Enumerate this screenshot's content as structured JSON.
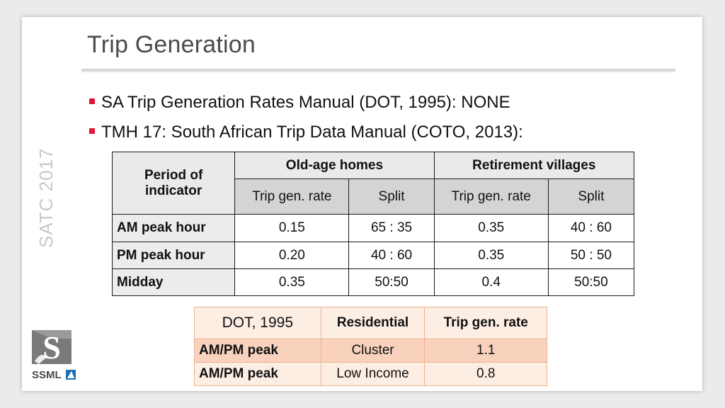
{
  "title": "Trip Generation",
  "bullets": [
    "SA Trip Generation Rates Manual (DOT, 1995): NONE",
    "TMH 17: South African Trip Data Manual (COTO, 2013):"
  ],
  "side_label": "SATC 2017",
  "table1": {
    "period_header": "Period of indicator",
    "group_headers": [
      "Old-age homes",
      "Retirement villages"
    ],
    "sub_headers": [
      "Trip gen. rate",
      "Split",
      "Trip gen. rate",
      "Split"
    ],
    "rows": [
      {
        "label": "AM peak hour",
        "cells": [
          "0.15",
          "65 : 35",
          "0.35",
          "40 : 60"
        ]
      },
      {
        "label": "PM peak hour",
        "cells": [
          "0.20",
          "40 : 60",
          "0.35",
          "50 : 50"
        ]
      },
      {
        "label": "Midday",
        "cells": [
          "0.35",
          "50:50",
          "0.4",
          "50:50"
        ]
      }
    ]
  },
  "table2": {
    "headers": [
      "DOT, 1995",
      "Residential",
      "Trip gen. rate"
    ],
    "rows": [
      {
        "label": "AM/PM peak",
        "cells": [
          "Cluster",
          "1.1"
        ]
      },
      {
        "label": "AM/PM peak",
        "cells": [
          "Low Income",
          "0.8"
        ]
      }
    ]
  },
  "logo": {
    "letter": "S",
    "text": "SSML"
  },
  "colors": {
    "bullet": "#e0143c",
    "table2_border": "#f0b08c",
    "table2_row_dark": "#f8d2bd",
    "table2_row_light": "#fdeee4"
  }
}
